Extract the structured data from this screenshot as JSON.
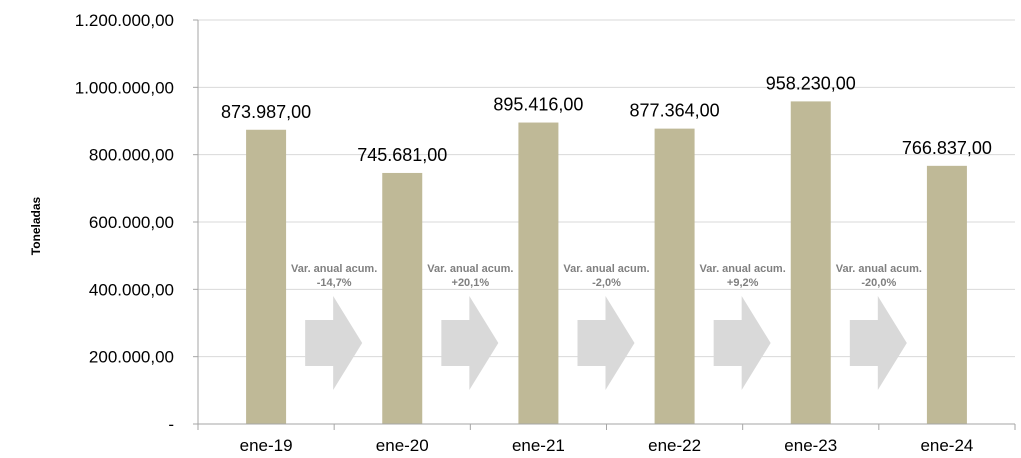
{
  "chart_data": {
    "type": "bar",
    "title": "",
    "xlabel": "",
    "ylabel": "Toneladas",
    "categories": [
      "ene-19",
      "ene-20",
      "ene-21",
      "ene-22",
      "ene-23",
      "ene-24"
    ],
    "values": [
      873987,
      745681,
      895416,
      877364,
      958230,
      766837
    ],
    "value_labels": [
      "873.987,00",
      "745.681,00",
      "895.416,00",
      "877.364,00",
      "958.230,00",
      "766.837,00"
    ],
    "ylim": [
      0,
      1200000
    ],
    "yticks": [
      {
        "value": 0,
        "label": "-"
      },
      {
        "value": 200000,
        "label": "200.000,00"
      },
      {
        "value": 400000,
        "label": "400.000,00"
      },
      {
        "value": 600000,
        "label": "600.000,00"
      },
      {
        "value": 800000,
        "label": "800.000,00"
      },
      {
        "value": 1000000,
        "label": "1.000.000,00"
      },
      {
        "value": 1200000,
        "label": "1.200.000,00"
      }
    ],
    "grid": true,
    "legend": "none",
    "bar_color": "#BFB997",
    "arrow_color": "#D9D9D9",
    "annotations": [
      {
        "line1": "Var. anual acum.",
        "line2": "-14,7%"
      },
      {
        "line1": "Var. anual acum.",
        "line2": "+20,1%"
      },
      {
        "line1": "Var. anual acum.",
        "line2": "-2,0%"
      },
      {
        "line1": "Var. anual acum.",
        "line2": "+9,2%"
      },
      {
        "line1": "Var. anual acum.",
        "line2": "-20,0%"
      }
    ]
  }
}
